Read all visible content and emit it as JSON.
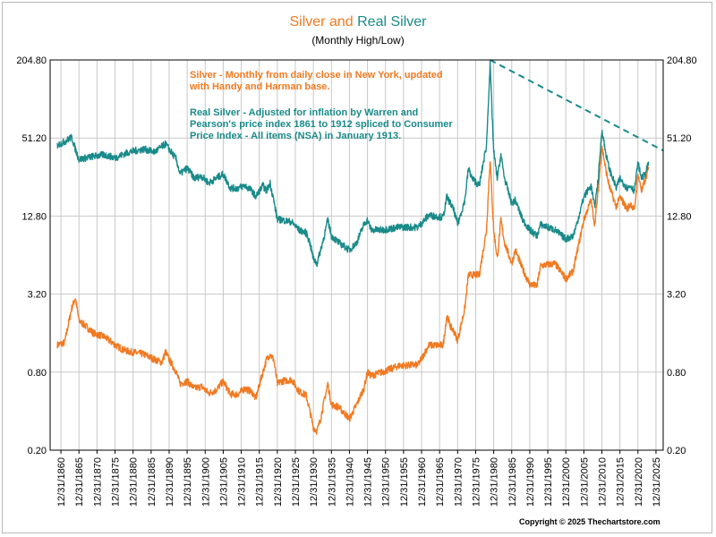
{
  "chart_data": {
    "type": "line",
    "title_part1": "Silver",
    "title_and": "and",
    "title_part2": "Real Silver",
    "subtitle": "(Monthly High/Low)",
    "y_scale": "log2",
    "ylim": [
      0.2,
      204.8
    ],
    "y_ticks": [
      "0.20",
      "0.80",
      "3.20",
      "12.80",
      "51.20",
      "204.80"
    ],
    "xlim": [
      1858,
      2028
    ],
    "x_tick_labels": [
      "12/31/1860",
      "12/31/1865",
      "12/31/1870",
      "12/31/1875",
      "12/31/1880",
      "12/31/1885",
      "12/31/1890",
      "12/31/1895",
      "12/31/1900",
      "12/31/1905",
      "12/31/1910",
      "12/31/1915",
      "12/31/1920",
      "12/31/1925",
      "12/31/1930",
      "12/31/1935",
      "12/31/1940",
      "12/31/1945",
      "12/31/1950",
      "12/31/1955",
      "12/31/1960",
      "12/31/1965",
      "12/31/1970",
      "12/31/1975",
      "12/31/1980",
      "12/31/1985",
      "12/31/1990",
      "12/31/1995",
      "12/31/2000",
      "12/31/2005",
      "12/31/2010",
      "12/31/2015",
      "12/31/2020",
      "12/31/2025"
    ],
    "grid": true,
    "series": [
      {
        "name": "Silver",
        "color": "#f07a22",
        "points": [
          [
            1860,
            1.3
          ],
          [
            1862,
            1.35
          ],
          [
            1864,
            2.5
          ],
          [
            1865,
            3.0
          ],
          [
            1866,
            2.0
          ],
          [
            1868,
            1.8
          ],
          [
            1870,
            1.6
          ],
          [
            1873,
            1.5
          ],
          [
            1876,
            1.3
          ],
          [
            1878,
            1.2
          ],
          [
            1880,
            1.15
          ],
          [
            1884,
            1.1
          ],
          [
            1887,
            1.0
          ],
          [
            1889,
            0.95
          ],
          [
            1890,
            1.15
          ],
          [
            1891,
            1.0
          ],
          [
            1893,
            0.8
          ],
          [
            1894,
            0.65
          ],
          [
            1896,
            0.68
          ],
          [
            1898,
            0.6
          ],
          [
            1900,
            0.62
          ],
          [
            1902,
            0.55
          ],
          [
            1904,
            0.58
          ],
          [
            1906,
            0.68
          ],
          [
            1908,
            0.54
          ],
          [
            1910,
            0.54
          ],
          [
            1912,
            0.6
          ],
          [
            1914,
            0.56
          ],
          [
            1915,
            0.5
          ],
          [
            1917,
            0.8
          ],
          [
            1918,
            1.0
          ],
          [
            1919,
            1.1
          ],
          [
            1920,
            1.0
          ],
          [
            1921,
            0.65
          ],
          [
            1922,
            0.68
          ],
          [
            1925,
            0.7
          ],
          [
            1927,
            0.57
          ],
          [
            1929,
            0.53
          ],
          [
            1930,
            0.4
          ],
          [
            1931,
            0.3
          ],
          [
            1932,
            0.28
          ],
          [
            1933,
            0.35
          ],
          [
            1934,
            0.48
          ],
          [
            1935,
            0.65
          ],
          [
            1936,
            0.45
          ],
          [
            1938,
            0.43
          ],
          [
            1941,
            0.35
          ],
          [
            1943,
            0.45
          ],
          [
            1945,
            0.6
          ],
          [
            1946,
            0.8
          ],
          [
            1947,
            0.75
          ],
          [
            1950,
            0.8
          ],
          [
            1955,
            0.9
          ],
          [
            1960,
            0.91
          ],
          [
            1963,
            1.29
          ],
          [
            1967,
            1.29
          ],
          [
            1968,
            2.2
          ],
          [
            1969,
            1.8
          ],
          [
            1970,
            1.65
          ],
          [
            1971,
            1.4
          ],
          [
            1973,
            2.5
          ],
          [
            1974,
            4.5
          ],
          [
            1975,
            4.5
          ],
          [
            1977,
            4.5
          ],
          [
            1979,
            10
          ],
          [
            1980,
            35
          ],
          [
            1981,
            10
          ],
          [
            1982,
            6
          ],
          [
            1983,
            12
          ],
          [
            1984,
            8
          ],
          [
            1986,
            5.5
          ],
          [
            1987,
            7
          ],
          [
            1989,
            5
          ],
          [
            1991,
            3.8
          ],
          [
            1993,
            3.7
          ],
          [
            1994,
            5.3
          ],
          [
            1998,
            5.5
          ],
          [
            2001,
            4.2
          ],
          [
            2003,
            4.8
          ],
          [
            2004,
            6.5
          ],
          [
            2006,
            12
          ],
          [
            2008,
            17
          ],
          [
            2009,
            11
          ],
          [
            2010,
            20
          ],
          [
            2011,
            45
          ],
          [
            2012,
            30
          ],
          [
            2013,
            22
          ],
          [
            2015,
            15
          ],
          [
            2016,
            18
          ],
          [
            2018,
            14.5
          ],
          [
            2019,
            16
          ],
          [
            2020,
            14
          ],
          [
            2021,
            27
          ],
          [
            2022,
            20
          ],
          [
            2023,
            24
          ],
          [
            2024,
            30
          ]
        ]
      },
      {
        "name": "Real Silver",
        "color": "#1a8a8a",
        "points": [
          [
            1860,
            45
          ],
          [
            1862,
            48
          ],
          [
            1864,
            52
          ],
          [
            1865,
            42
          ],
          [
            1866,
            35
          ],
          [
            1868,
            36
          ],
          [
            1870,
            37
          ],
          [
            1873,
            38
          ],
          [
            1876,
            36
          ],
          [
            1878,
            38
          ],
          [
            1880,
            40
          ],
          [
            1884,
            42
          ],
          [
            1887,
            40
          ],
          [
            1889,
            44
          ],
          [
            1890,
            46
          ],
          [
            1891,
            42
          ],
          [
            1893,
            35
          ],
          [
            1894,
            27
          ],
          [
            1896,
            30
          ],
          [
            1898,
            25
          ],
          [
            1900,
            26
          ],
          [
            1902,
            23
          ],
          [
            1904,
            25
          ],
          [
            1906,
            27
          ],
          [
            1908,
            21
          ],
          [
            1910,
            21
          ],
          [
            1912,
            22
          ],
          [
            1914,
            20
          ],
          [
            1915,
            18
          ],
          [
            1917,
            22
          ],
          [
            1918,
            20
          ],
          [
            1919,
            23
          ],
          [
            1920,
            17
          ],
          [
            1921,
            12
          ],
          [
            1922,
            12
          ],
          [
            1925,
            11.5
          ],
          [
            1927,
            10
          ],
          [
            1929,
            9.5
          ],
          [
            1930,
            8
          ],
          [
            1931,
            6
          ],
          [
            1932,
            5.5
          ],
          [
            1933,
            7
          ],
          [
            1934,
            9
          ],
          [
            1935,
            12
          ],
          [
            1936,
            9
          ],
          [
            1938,
            8
          ],
          [
            1941,
            7
          ],
          [
            1943,
            8
          ],
          [
            1945,
            11
          ],
          [
            1946,
            12
          ],
          [
            1947,
            10
          ],
          [
            1950,
            10
          ],
          [
            1955,
            10.5
          ],
          [
            1960,
            10.5
          ],
          [
            1963,
            13
          ],
          [
            1967,
            12.5
          ],
          [
            1968,
            18
          ],
          [
            1969,
            16
          ],
          [
            1970,
            14
          ],
          [
            1971,
            11
          ],
          [
            1973,
            17
          ],
          [
            1974,
            30
          ],
          [
            1975,
            25
          ],
          [
            1977,
            22
          ],
          [
            1979,
            45
          ],
          [
            1980,
            190
          ],
          [
            1981,
            40
          ],
          [
            1982,
            25
          ],
          [
            1983,
            38
          ],
          [
            1984,
            25
          ],
          [
            1986,
            16
          ],
          [
            1987,
            17
          ],
          [
            1989,
            12
          ],
          [
            1991,
            10
          ],
          [
            1993,
            9
          ],
          [
            1994,
            11
          ],
          [
            1998,
            10
          ],
          [
            2001,
            8.5
          ],
          [
            2003,
            9
          ],
          [
            2004,
            11
          ],
          [
            2006,
            18
          ],
          [
            2008,
            22
          ],
          [
            2009,
            15
          ],
          [
            2010,
            25
          ],
          [
            2011,
            60
          ],
          [
            2012,
            40
          ],
          [
            2013,
            30
          ],
          [
            2015,
            21
          ],
          [
            2016,
            25
          ],
          [
            2018,
            21
          ],
          [
            2019,
            22
          ],
          [
            2020,
            20
          ],
          [
            2021,
            33
          ],
          [
            2022,
            25
          ],
          [
            2023,
            27
          ],
          [
            2024,
            33
          ]
        ]
      },
      {
        "name": "trendline",
        "color": "#1a8a8a",
        "style": "dashed",
        "points": [
          [
            1980,
            204.8
          ],
          [
            2028,
            41
          ]
        ]
      }
    ],
    "annotations": [
      "Silver - Monthly from daily close in New York, updated with Handy and Harman base.",
      "Real Silver - Adjusted for inflation by Warren and Pearson's price index 1861 to 1912 spliced to Consumer Price Index - All items (NSA) in January 1913."
    ],
    "copyright": "Copyright © 2025 Thechartstore.com"
  }
}
